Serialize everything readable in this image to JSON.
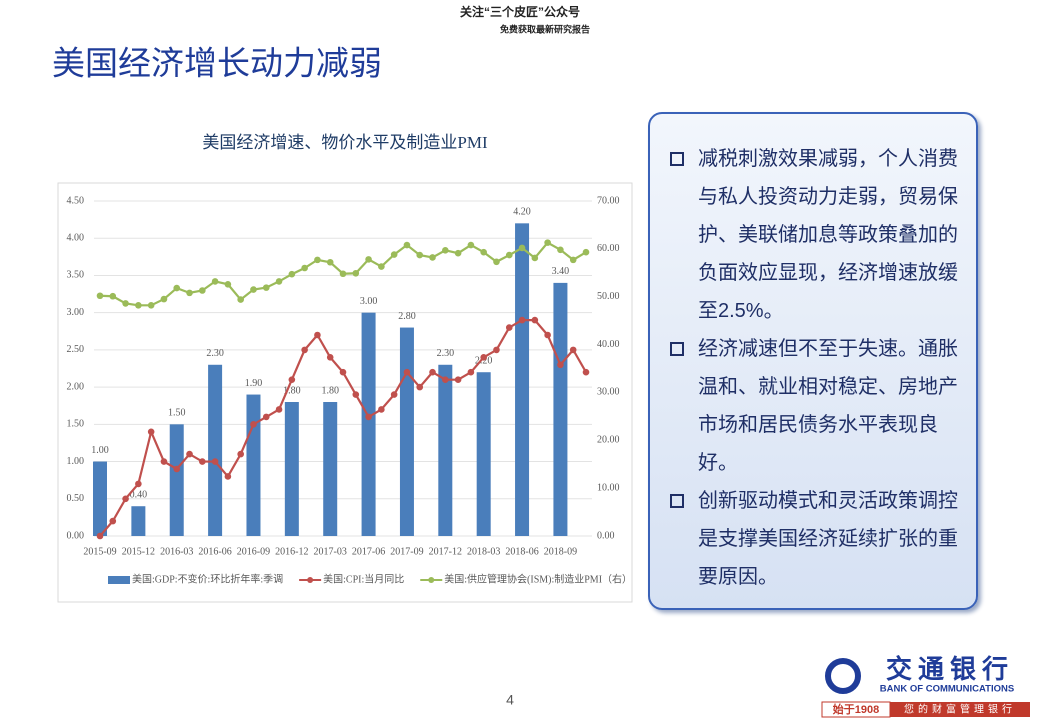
{
  "header": {
    "line1": "关注“三个皮匠”公众号",
    "line2": "免费获取最新研究报告"
  },
  "slide": {
    "title": "美国经济增长动力减弱",
    "page_number": "4"
  },
  "chart_data": {
    "type": "bar-line",
    "title": "美国经济增速、物价水平及制造业PMI",
    "categories": [
      "2015-09",
      null,
      null,
      "2015-12",
      null,
      null,
      "2016-03",
      null,
      null,
      "2016-06",
      null,
      null,
      "2016-09",
      null,
      null,
      "2016-12",
      null,
      null,
      "2017-03",
      null,
      null,
      "2017-06",
      null,
      null,
      "2017-09",
      null,
      null,
      "2017-12",
      null,
      null,
      "2018-03",
      null,
      null,
      "2018-06",
      null,
      null,
      "2018-09",
      null,
      null
    ],
    "series": [
      {
        "name": "美国:GDP:不变价:环比折年率:季调",
        "type": "bar",
        "color": "#4a7ebb",
        "values": [
          1.0,
          null,
          null,
          0.4,
          null,
          null,
          1.5,
          null,
          null,
          2.3,
          null,
          null,
          1.9,
          null,
          null,
          1.8,
          null,
          null,
          1.8,
          null,
          null,
          3.0,
          null,
          null,
          2.8,
          null,
          null,
          2.3,
          null,
          null,
          2.2,
          null,
          null,
          4.2,
          null,
          null,
          3.4,
          null,
          null
        ],
        "value_labels": [
          "1.00",
          null,
          null,
          "0.40",
          null,
          null,
          "1.50",
          null,
          null,
          "2.30",
          null,
          null,
          "1.90",
          null,
          null,
          "1.80",
          null,
          null,
          "1.80",
          null,
          null,
          "3.00",
          null,
          null,
          "2.80",
          null,
          null,
          "2.30",
          null,
          null,
          "2.20",
          null,
          null,
          "4.20",
          null,
          null,
          "3.40",
          null,
          null
        ]
      },
      {
        "name": "美国:CPI:当月同比",
        "type": "line",
        "color": "#c0504d",
        "values": [
          0.0,
          0.2,
          0.5,
          0.7,
          1.4,
          1.0,
          0.9,
          1.1,
          1.0,
          1.0,
          0.8,
          1.1,
          1.5,
          1.6,
          1.7,
          2.1,
          2.5,
          2.7,
          2.4,
          2.2,
          1.9,
          1.6,
          1.7,
          1.9,
          2.2,
          2.0,
          2.2,
          2.1,
          2.1,
          2.2,
          2.4,
          2.5,
          2.8,
          2.9,
          2.9,
          2.7,
          2.3,
          2.5,
          2.2
        ]
      },
      {
        "name": "美国:供应管理协会(ISM):制造业PMI（右）",
        "type": "line",
        "axis": "y2",
        "color": "#9bbb59",
        "values": [
          50.2,
          50.1,
          48.6,
          48.2,
          48.2,
          49.5,
          51.8,
          50.8,
          51.3,
          53.2,
          52.6,
          49.4,
          51.5,
          51.9,
          53.2,
          54.7,
          56.0,
          57.7,
          57.2,
          54.8,
          54.9,
          57.8,
          56.3,
          58.8,
          60.8,
          58.7,
          58.2,
          59.7,
          59.1,
          60.8,
          59.3,
          57.3,
          58.7,
          60.2,
          58.1,
          61.3,
          59.8,
          57.7,
          59.3
        ]
      }
    ],
    "ylim": [
      0,
      4.5
    ],
    "yticks": [
      {
        "value": 0,
        "label": "0.00"
      },
      {
        "value": 0.5,
        "label": "0.50"
      },
      {
        "value": 1,
        "label": "1.00"
      },
      {
        "value": 1.5,
        "label": "1.50"
      },
      {
        "value": 2,
        "label": "2.00"
      },
      {
        "value": 2.5,
        "label": "2.50"
      },
      {
        "value": 3,
        "label": "3.00"
      },
      {
        "value": 3.5,
        "label": "3.50"
      },
      {
        "value": 4,
        "label": "4.00"
      },
      {
        "value": 4.5,
        "label": "4.50"
      }
    ],
    "y2lim": [
      0,
      70
    ],
    "y2ticks": [
      {
        "value": 0,
        "label": "0.00"
      },
      {
        "value": 10,
        "label": "10.00"
      },
      {
        "value": 20,
        "label": "20.00"
      },
      {
        "value": 30,
        "label": "30.00"
      },
      {
        "value": 40,
        "label": "40.00"
      },
      {
        "value": 50,
        "label": "50.00"
      },
      {
        "value": 60,
        "label": "60.00"
      },
      {
        "value": 70,
        "label": "70.00"
      }
    ],
    "grid": true,
    "legend": "bottom"
  },
  "bullets": [
    "减税刺激效果减弱，个人消费与私人投资动力走弱，贸易保护、美联储加息等政策叠加的负面效应显现，经济增速放缓至2.5%。",
    "经济减速但不至于失速。通胀温和、就业相对稳定、房地产市场和居民债务水平表现良好。",
    "创新驱动模式和灵活政策调控是支撑美国经济延续扩张的重要原因。"
  ],
  "logo": {
    "name": "交通银行",
    "english": "BANK OF COMMUNICATIONS",
    "since": "始于1908",
    "slogan": "您的财富管理银行"
  }
}
